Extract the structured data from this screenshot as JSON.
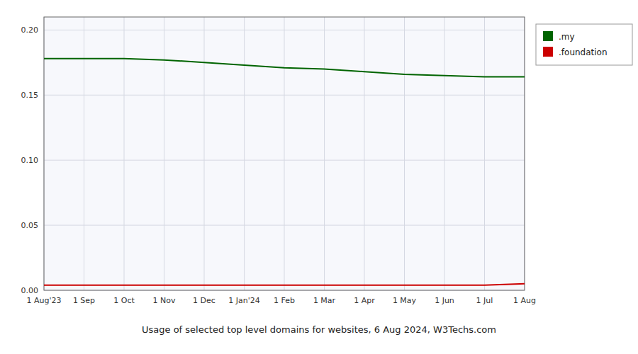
{
  "chart_data": {
    "type": "line",
    "title": "Usage of selected top level domains for websites, 6 Aug 2024, W3Techs.com",
    "categories": [
      "1 Aug'23",
      "1 Sep",
      "1 Oct",
      "1 Nov",
      "1 Dec",
      "1 Jan'24",
      "1 Feb",
      "1 Mar",
      "1 Apr",
      "1 May",
      "1 Jun",
      "1 Jul",
      "1 Aug"
    ],
    "series": [
      {
        "name": ".my",
        "color": "#006400",
        "values": [
          0.178,
          0.178,
          0.178,
          0.177,
          0.175,
          0.173,
          0.171,
          0.17,
          0.168,
          0.166,
          0.165,
          0.164,
          0.164
        ]
      },
      {
        "name": ".foundation",
        "color": "#cc0000",
        "values": [
          0.004,
          0.004,
          0.004,
          0.004,
          0.004,
          0.004,
          0.004,
          0.004,
          0.004,
          0.004,
          0.004,
          0.004,
          0.005
        ]
      }
    ],
    "ylim": [
      0,
      0.21
    ],
    "yticks": [
      {
        "value": 0,
        "label": "0.00"
      },
      {
        "value": 0.05,
        "label": "0.05"
      },
      {
        "value": 0.1,
        "label": "0.10"
      },
      {
        "value": 0.15,
        "label": "0.15"
      },
      {
        "value": 0.2,
        "label": "0.20"
      }
    ],
    "grid": true,
    "legend": "right"
  }
}
